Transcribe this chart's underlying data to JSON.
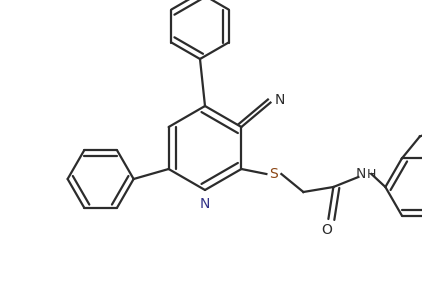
{
  "bg_color": "#ffffff",
  "line_color": "#2c2c2c",
  "bond_width": 1.6,
  "figsize": [
    4.22,
    3.03
  ],
  "dpi": 100,
  "xlim": [
    0,
    422
  ],
  "ylim": [
    0,
    303
  ]
}
